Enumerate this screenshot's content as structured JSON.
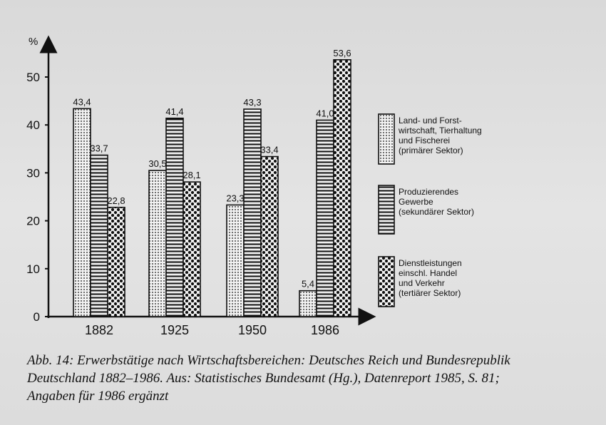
{
  "chart_data": {
    "type": "bar",
    "ylabel": "%",
    "ylim": [
      0,
      55
    ],
    "yticks": [
      0,
      10,
      20,
      30,
      40,
      50
    ],
    "categories": [
      "1882",
      "1925",
      "1950",
      "1986"
    ],
    "series": [
      {
        "name": "Land- und Forstwirtschaft, Tierhaltung und Fischerei (primärer Sektor)",
        "legend_lines": [
          "Land- und Forst-",
          "wirtschaft, Tierhaltung",
          "und Fischerei",
          "(primärer Sektor)"
        ],
        "pattern": "fine-dots",
        "values": [
          43.4,
          30.5,
          23.3,
          5.4
        ],
        "labels": [
          "43,4",
          "30,5",
          "23,3",
          "5,4"
        ]
      },
      {
        "name": "Produzierendes Gewerbe (sekundärer Sektor)",
        "legend_lines": [
          "Produzierendes",
          "Gewerbe",
          "(sekundärer Sektor)"
        ],
        "pattern": "horizontal-lines",
        "values": [
          33.7,
          41.4,
          43.3,
          41.0
        ],
        "labels": [
          "33,7",
          "41,4",
          "43,3",
          "41,0"
        ]
      },
      {
        "name": "Dienstleistungen einschl. Handel und Verkehr (tertiärer Sektor)",
        "legend_lines": [
          "Dienstleistungen",
          "einschl. Handel",
          "und Verkehr",
          "(tertiärer Sektor)"
        ],
        "pattern": "coarse-dots",
        "values": [
          22.8,
          28.1,
          33.4,
          53.6
        ],
        "labels": [
          "22,8",
          "28,1",
          "33,4",
          "53,6"
        ]
      }
    ],
    "legend_position": "right"
  },
  "caption": {
    "line1": "Abb. 14: Erwerbstätige nach Wirtschaftsbereichen: Deutsches Reich und Bundesrepublik",
    "line2": "Deutschland 1882–1986. Aus: Statistisches Bundesamt (Hg.), Datenreport 1985, S. 81;",
    "line3": "Angaben für 1986 ergänzt"
  }
}
